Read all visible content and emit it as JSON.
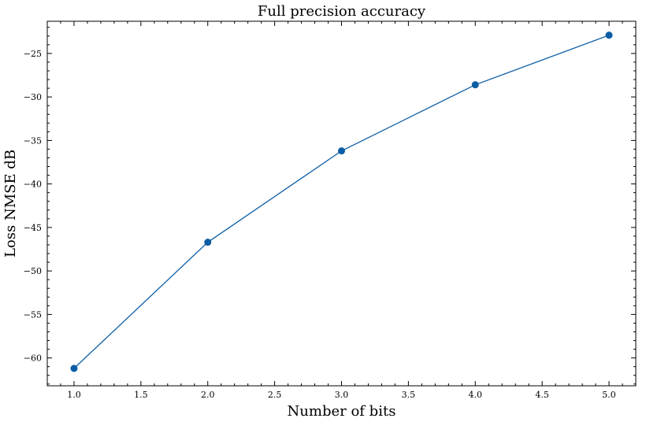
{
  "chart_data": {
    "type": "line",
    "title": "Full precision accuracy",
    "xlabel": "Number of bits",
    "ylabel": "Loss NMSE dB",
    "xlim": [
      0.8,
      5.2
    ],
    "ylim": [
      -63.2,
      -21.3
    ],
    "x_ticks": [
      1.0,
      1.5,
      2.0,
      2.5,
      3.0,
      3.5,
      4.0,
      4.5,
      5.0
    ],
    "x_tick_labels": [
      "1.0",
      "1.5",
      "2.0",
      "2.5",
      "3.0",
      "3.5",
      "4.0",
      "4.5",
      "5.0"
    ],
    "y_ticks": [
      -60,
      -55,
      -50,
      -45,
      -40,
      -35,
      -30,
      -25
    ],
    "y_tick_labels": [
      "−60",
      "−55",
      "−50",
      "−45",
      "−40",
      "−35",
      "−30",
      "−25"
    ],
    "grid": false,
    "series": [
      {
        "x": [
          1,
          2,
          3,
          4,
          5
        ],
        "y": [
          -61.2,
          -46.7,
          -36.2,
          -28.6,
          -22.9
        ],
        "color": "#0C5DA5",
        "marker": "circle"
      }
    ]
  }
}
